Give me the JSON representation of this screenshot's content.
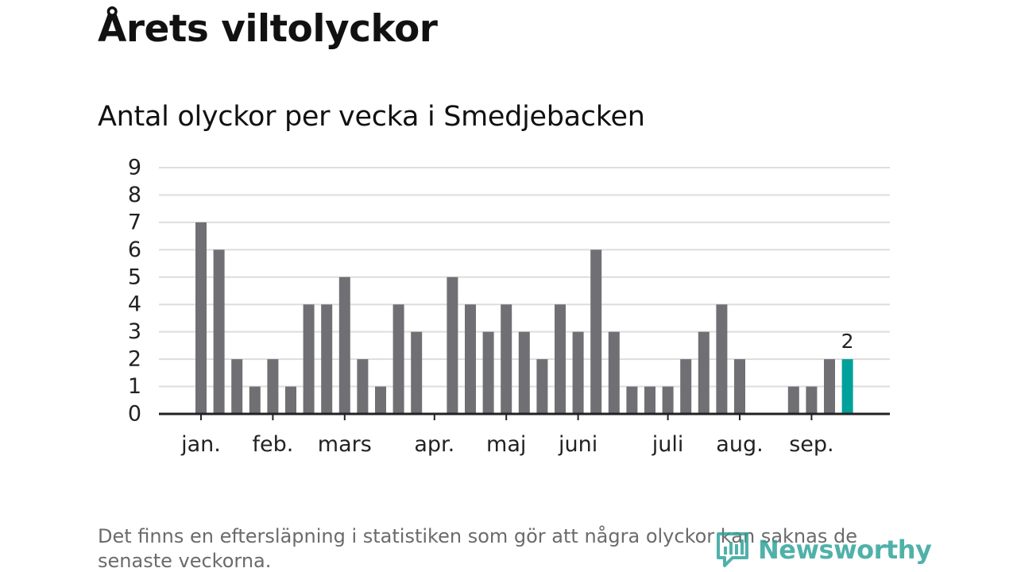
{
  "title": "Årets viltolyckor",
  "footnote": "Det finns en eftersläpning i statistiken som gör att några olyckor kan saknas de senaste veckorna.",
  "brand": {
    "name": "Newsworthy",
    "color": "#2aa198",
    "icon": "bar-chart-logo-icon"
  },
  "colors": {
    "bar": "#706f74",
    "highlight": "#00a19a",
    "grid": "#dddddd",
    "axis": "#222222"
  },
  "chart_data": {
    "type": "bar",
    "subtitle": "Antal olyckor per vecka i Smedjebacken",
    "xlabel": "",
    "ylabel": "",
    "ylim": [
      0,
      9
    ],
    "yticks": [
      0,
      1,
      2,
      3,
      4,
      5,
      6,
      7,
      8,
      9
    ],
    "grid": true,
    "values": [
      7,
      6,
      2,
      1,
      2,
      1,
      4,
      4,
      5,
      2,
      1,
      4,
      3,
      0,
      5,
      4,
      3,
      4,
      3,
      2,
      4,
      3,
      6,
      3,
      1,
      1,
      1,
      2,
      3,
      4,
      2,
      0,
      0,
      1,
      1,
      2,
      2
    ],
    "highlight_index": 36,
    "highlight_label": "2",
    "month_labels": [
      {
        "label": "jan.",
        "week_index": 0
      },
      {
        "label": "feb.",
        "week_index": 4
      },
      {
        "label": "mars",
        "week_index": 8
      },
      {
        "label": "apr.",
        "week_index": 13
      },
      {
        "label": "maj",
        "week_index": 17
      },
      {
        "label": "juni",
        "week_index": 21
      },
      {
        "label": "juli",
        "week_index": 26
      },
      {
        "label": "aug.",
        "week_index": 30
      },
      {
        "label": "sep.",
        "week_index": 34
      }
    ]
  }
}
